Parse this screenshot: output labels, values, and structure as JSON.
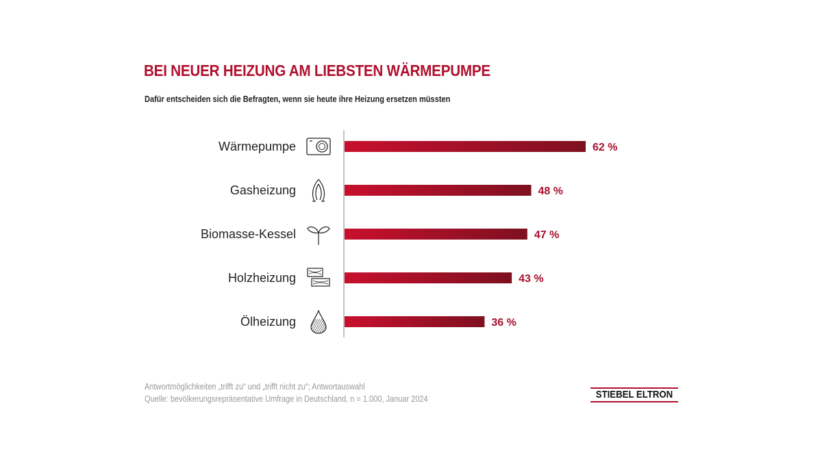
{
  "chart_data": {
    "type": "bar",
    "orientation": "horizontal",
    "title": "BEI NEUER HEIZUNG AM LIEBSTEN WÄRMEPUMPE",
    "subtitle": "Dafür entscheiden sich die Befragten, wenn sie heute ihre Heizung ersetzen müssten",
    "categories": [
      "Wärmepumpe",
      "Gasheizung",
      "Biomasse-Kessel",
      "Holzheizung",
      "Ölheizung"
    ],
    "icons": [
      "heat-pump-icon",
      "gas-flame-icon",
      "plant-sprout-icon",
      "wood-logs-icon",
      "oil-drop-icon"
    ],
    "values": [
      62,
      48,
      47,
      43,
      36
    ],
    "value_labels": [
      "62 %",
      "48 %",
      "47 %",
      "43 %",
      "36 %"
    ],
    "unit": "%",
    "xlim": [
      0,
      100
    ],
    "grid": false,
    "colors": {
      "bar_start": "#c8102e",
      "bar_end": "#7d1020",
      "label": "#a8102c",
      "title": "#b0102e"
    }
  },
  "footnotes": [
    "Antwortmöglichkeiten „trifft zu“ und „trifft nicht zu“; Antwortauswahl",
    "Quelle: bevölkerungsrepräsentative Umfrage in Deutschland, n = 1.000, Januar 2024"
  ],
  "logo": "STIEBEL ELTRON"
}
